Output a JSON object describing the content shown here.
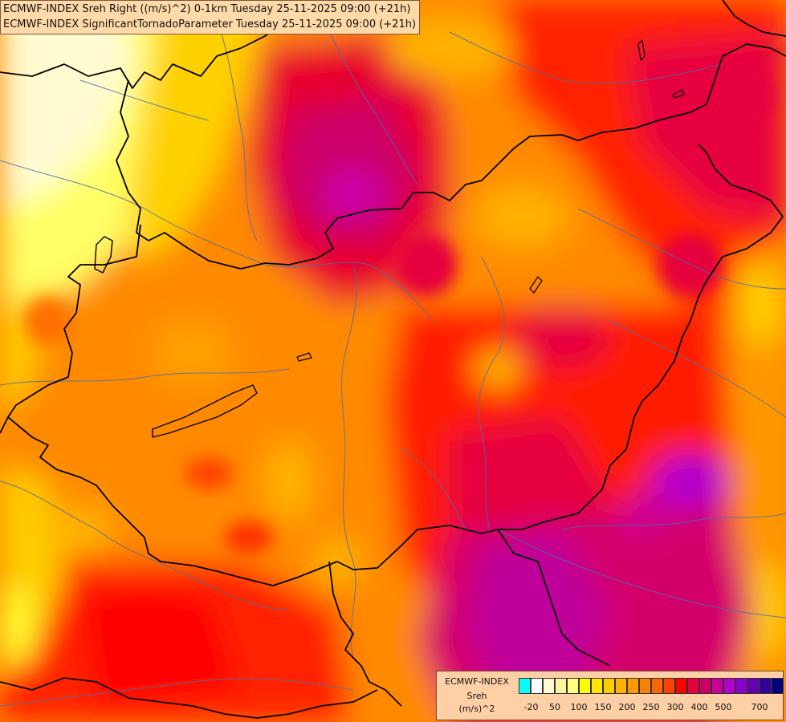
{
  "title": {
    "line1": "ECMWF-INDEX Sreh Right ((m/s)^2) 0-1km Tuesday 25-11-2025 09:00 (+21h)",
    "line2": "ECMWF-INDEX SignificantTornadoParameter Tuesday 25-11-2025 09:00 (+21h)"
  },
  "legend": {
    "source": "ECMWF-INDEX",
    "variable": "Sreh",
    "unit": "(m/s)^2",
    "tick_labels": [
      "-20",
      "50",
      "100",
      "150",
      "200",
      "250",
      "300",
      "400",
      "500",
      "700"
    ],
    "swatch_colors": [
      "#00ffff",
      "#ffffff",
      "#fffacd",
      "#fff59e",
      "#ffff80",
      "#ffff00",
      "#ffe600",
      "#ffcc00",
      "#ffb300",
      "#ff9900",
      "#ff8000",
      "#ff6600",
      "#ff4000",
      "#ff0000",
      "#e6003c",
      "#cc0066",
      "#cc0099",
      "#b300cc",
      "#8c00cc",
      "#6600b3",
      "#330099",
      "#00007a"
    ]
  },
  "colors": {
    "background": "#ff8a00",
    "borders": "#000000",
    "rivers": "#4a6fa5"
  }
}
